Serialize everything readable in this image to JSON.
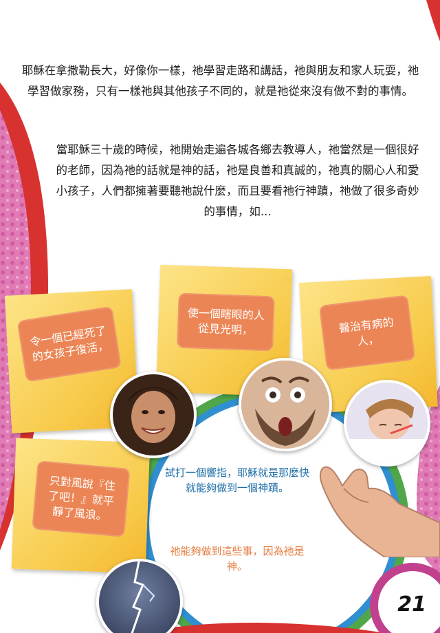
{
  "paragraphs": [
    "耶穌在拿撒勒長大，好像你一樣，祂學習走路和講話，祂與朋友和家人玩耍，祂學習做家務，只有一樣祂與其他孩子不同的，就是祂從來沒有做不對的事情。",
    "當耶穌三十歲的時候，祂開始走遍各城各鄉去教導人，祂當然是一個很好的老師，因為祂的話就是神的話，祂是良善和真誠的，祂真的關心人和愛小孩子，人們都擁著要聽祂說什麼，而且要看祂行神蹟，祂做了很多奇妙的事情，如..."
  ],
  "notes": {
    "raise_girl": "令一個已經死了的女孩子復活，",
    "blind_man": "使一個瞎眼的人從見光明，",
    "heal_sick": "醫治有病的人，",
    "calm_storm": "只對風說『住了吧！』就平靜了風浪。"
  },
  "captions": {
    "snap": "試打一個響指，耶穌就是那麼快就能夠做到一個神蹟。",
    "because": "祂能夠做到這些事，因為祂是神。"
  },
  "page_number": "21",
  "colors": {
    "note_label": "#ec8555",
    "note_paper": "#f7c948",
    "caption_blue": "#1f6fa8",
    "caption_orange": "#e47b3e",
    "pink_band": "#e07bb5",
    "red_band": "#d7322f"
  }
}
